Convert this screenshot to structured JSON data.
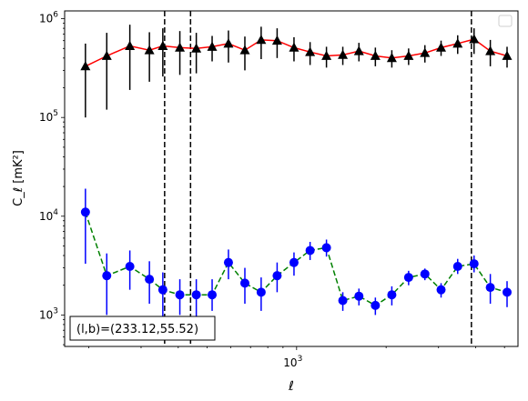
{
  "chart_data": {
    "type": "scatter",
    "title": "",
    "xlabel": "ℓ",
    "ylabel": "C_ℓ  [mK²]",
    "xscale": "log",
    "yscale": "log",
    "xlim": [
      166,
      5550
    ],
    "ylim": [
      480,
      1200000
    ],
    "x_major_ticks": [
      {
        "value": 1000,
        "label": "10",
        "exp": "3"
      }
    ],
    "y_major_ticks": [
      {
        "value": 1000,
        "label": "10",
        "exp": "3"
      },
      {
        "value": 10000,
        "label": "10",
        "exp": "4"
      },
      {
        "value": 100000,
        "label": "10",
        "exp": "5"
      },
      {
        "value": 1000000,
        "label": "10",
        "exp": "6"
      }
    ],
    "vlines": [
      360,
      440,
      3870
    ],
    "legend": {
      "placement": "top-right",
      "entries": []
    },
    "annotation": "(l,b)=(233.12,55.52)",
    "grid": false,
    "series": [
      {
        "marker": "triangle",
        "marker_color": "#000000",
        "line_color": "#ff0000",
        "line_style": "solid",
        "x": [
          195,
          230,
          275,
          320,
          355,
          405,
          460,
          520,
          590,
          670,
          760,
          860,
          980,
          1110,
          1260,
          1430,
          1620,
          1840,
          2090,
          2380,
          2700,
          3060,
          3480,
          3950,
          4480,
          5100
        ],
        "y": [
          330000,
          420000,
          530000,
          480000,
          530000,
          510000,
          500000,
          520000,
          560000,
          480000,
          610000,
          600000,
          510000,
          460000,
          420000,
          430000,
          470000,
          420000,
          400000,
          420000,
          450000,
          510000,
          560000,
          620000,
          470000,
          420000
        ],
        "err_low": [
          230000,
          300000,
          340000,
          250000,
          270000,
          240000,
          220000,
          150000,
          200000,
          180000,
          220000,
          200000,
          140000,
          120000,
          100000,
          90000,
          100000,
          90000,
          80000,
          80000,
          90000,
          90000,
          120000,
          180000,
          140000,
          100000
        ],
        "err_high": [
          230000,
          300000,
          340000,
          250000,
          270000,
          240000,
          220000,
          150000,
          200000,
          180000,
          220000,
          200000,
          140000,
          120000,
          100000,
          90000,
          100000,
          90000,
          80000,
          80000,
          90000,
          90000,
          120000,
          180000,
          140000,
          100000
        ]
      },
      {
        "marker": "circle",
        "marker_color": "#0000ff",
        "line_color": "#008000",
        "line_style": "dashed",
        "x": [
          195,
          230,
          275,
          320,
          355,
          405,
          460,
          520,
          590,
          670,
          760,
          860,
          980,
          1110,
          1260,
          1430,
          1620,
          1840,
          2090,
          2380,
          2700,
          3060,
          3480,
          3950,
          4480,
          5100
        ],
        "y": [
          11000,
          2500,
          3100,
          2300,
          1800,
          1600,
          1600,
          1600,
          3400,
          2100,
          1700,
          2500,
          3400,
          4500,
          4800,
          1400,
          1550,
          1250,
          1600,
          2400,
          2600,
          1800,
          3100,
          3300,
          1900,
          1700
        ],
        "err_low": [
          7700,
          1500,
          1300,
          1000,
          900,
          600,
          700,
          500,
          1100,
          800,
          600,
          800,
          900,
          900,
          900,
          300,
          300,
          250,
          350,
          400,
          350,
          300,
          500,
          600,
          600,
          500
        ],
        "err_high": [
          8000,
          1700,
          1400,
          1200,
          900,
          700,
          700,
          700,
          1200,
          900,
          700,
          900,
          900,
          1000,
          1000,
          300,
          300,
          250,
          350,
          400,
          350,
          300,
          600,
          700,
          700,
          500
        ]
      }
    ]
  }
}
